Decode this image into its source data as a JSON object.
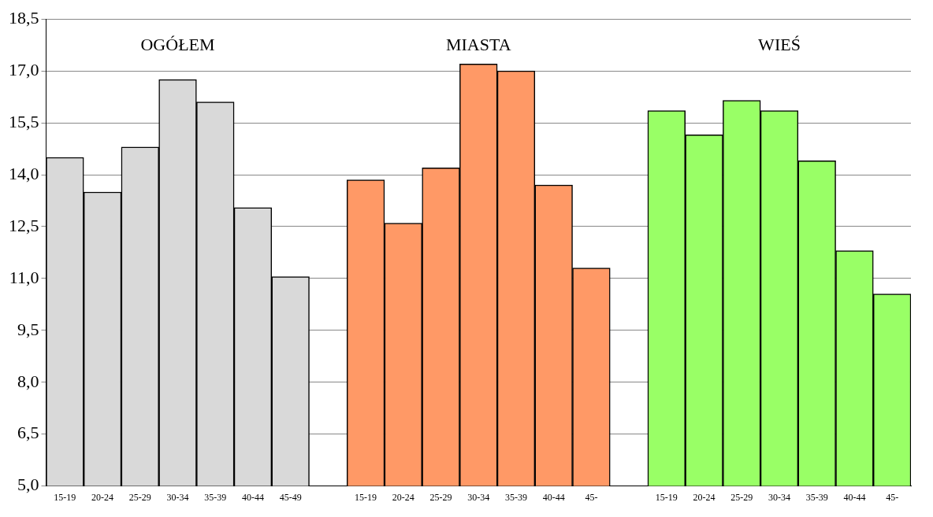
{
  "chart_data": {
    "type": "bar",
    "categories": [
      "15-19",
      "20-24",
      "25-29",
      "30-34",
      "35-39",
      "40-44",
      "45-49",
      null,
      "15-19",
      "20-24",
      "25-29",
      "30-34",
      "35-39",
      "40-44",
      "45-",
      null,
      "15-19",
      "20-24",
      "25-29",
      "30-34",
      "35-39",
      "40-44",
      "45-"
    ],
    "series": [
      {
        "name": "OGÓŁEM",
        "color": "#d9d9d9",
        "values": [
          14.5,
          13.5,
          14.8,
          16.75,
          16.1,
          13.05,
          11.05,
          null,
          null,
          null,
          null,
          null,
          null,
          null,
          null,
          null,
          null,
          null,
          null,
          null,
          null,
          null,
          null
        ]
      },
      {
        "name": "MIASTA",
        "color": "#ff9966",
        "values": [
          null,
          null,
          null,
          null,
          null,
          null,
          null,
          null,
          13.85,
          12.6,
          14.2,
          17.2,
          17.0,
          13.7,
          11.3,
          null,
          null,
          null,
          null,
          null,
          null,
          null,
          null
        ]
      },
      {
        "name": "WIEŚ",
        "color": "#99ff66",
        "values": [
          null,
          null,
          null,
          null,
          null,
          null,
          null,
          null,
          null,
          null,
          null,
          null,
          null,
          null,
          null,
          null,
          15.85,
          15.15,
          16.15,
          15.85,
          14.4,
          11.8,
          10.55
        ]
      }
    ],
    "ylim": [
      5,
      18.5
    ],
    "yticks": [
      {
        "value": 5,
        "label": "5,0"
      },
      {
        "value": 6.5,
        "label": "6,5"
      },
      {
        "value": 8,
        "label": "8,0"
      },
      {
        "value": 9.5,
        "label": "9,5"
      },
      {
        "value": 11,
        "label": "11,0"
      },
      {
        "value": 12.5,
        "label": "12,5"
      },
      {
        "value": 14,
        "label": "14,0"
      },
      {
        "value": 15.5,
        "label": "15,5"
      },
      {
        "value": 17,
        "label": "17,0"
      },
      {
        "value": 18.5,
        "label": "18,5"
      }
    ],
    "grid": "y"
  }
}
